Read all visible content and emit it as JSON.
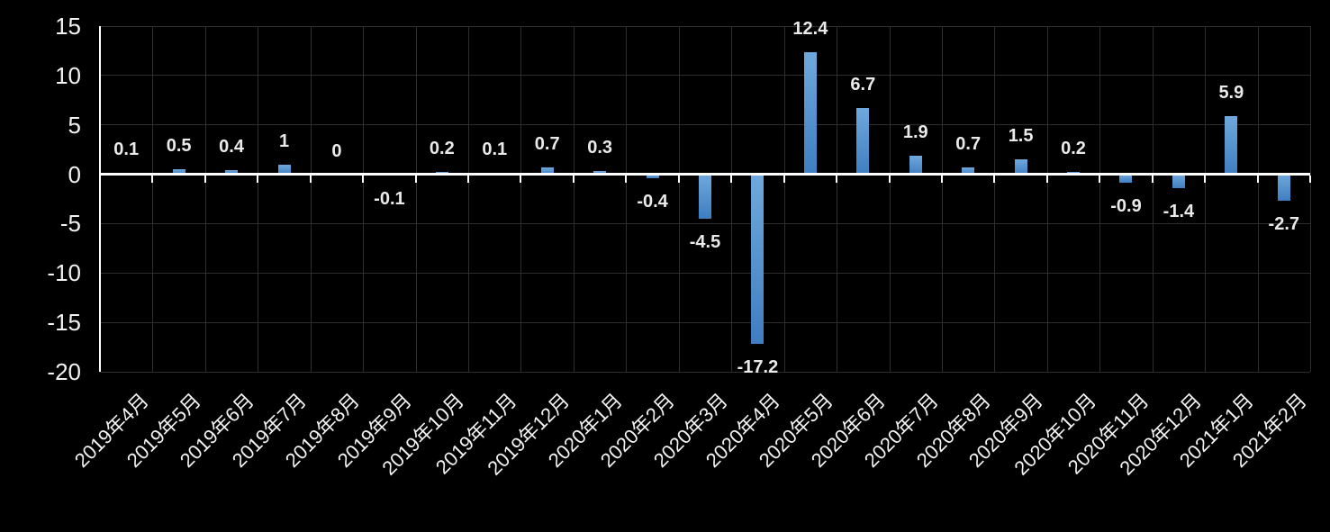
{
  "chart_data": {
    "type": "bar",
    "title": "",
    "xlabel": "",
    "ylabel": "",
    "categories": [
      "2019年4月",
      "2019年5月",
      "2019年6月",
      "2019年7月",
      "2019年8月",
      "2019年9月",
      "2019年10月",
      "2019年11月",
      "2019年12月",
      "2020年1月",
      "2020年2月",
      "2020年3月",
      "2020年4月",
      "2020年5月",
      "2020年6月",
      "2020年7月",
      "2020年8月",
      "2020年9月",
      "2020年10月",
      "2020年11月",
      "2020年12月",
      "2021年1月",
      "2021年2月"
    ],
    "values": [
      0.1,
      0.5,
      0.4,
      1,
      0,
      -0.1,
      0.2,
      0.1,
      0.7,
      0.3,
      -0.4,
      -4.5,
      -17.2,
      12.4,
      6.7,
      1.9,
      0.7,
      1.5,
      0.2,
      -0.9,
      -1.4,
      5.9,
      -2.7
    ],
    "data_labels": [
      "0.1",
      "0.5",
      "0.4",
      "1",
      "0",
      "-0.1",
      "0.2",
      "0.1",
      "0.7",
      "0.3",
      "-0.4",
      "-4.5",
      "-17.2",
      "12.4",
      "6.7",
      "1.9",
      "0.7",
      "1.5",
      "0.2",
      "-0.9",
      "-1.4",
      "5.9",
      "-2.7"
    ],
    "ylim": [
      -20,
      15
    ],
    "ytick_step": 5,
    "yticks": [
      15,
      10,
      5,
      0,
      -5,
      -10,
      -15,
      -20
    ],
    "grid": true,
    "legend": false,
    "x_label_rotation_deg": -45,
    "colors": {
      "background": "#000000",
      "bar_gradient_top": "#6FA8DC",
      "bar_gradient_bottom": "#3E7EC1",
      "gridline": "#2E2E2E",
      "axis_line": "#FFFFFF",
      "data_label": "#EAEAEA",
      "axis_tick_label": "#F2F2F2"
    }
  }
}
